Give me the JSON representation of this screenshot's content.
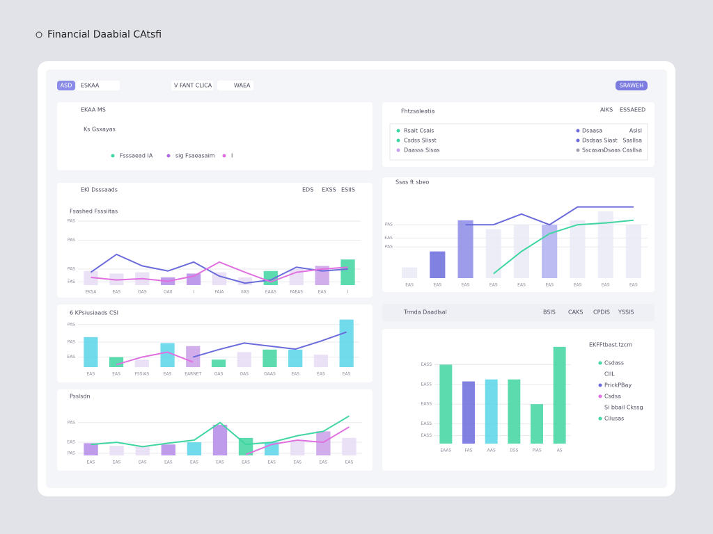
{
  "header": {
    "title": "Financial Daabial CAtsfi"
  },
  "toolbar": {
    "badge": "ASD",
    "filter": "ESKAA",
    "select": "V FANT CLICA",
    "view": "WAEA",
    "button": "SRAWEH"
  },
  "summary": {
    "title": "EKAA MS",
    "row": "Ks Gsxayas",
    "legend": [
      {
        "name": "Fsssaead IA",
        "color": "#3fd6a0"
      },
      {
        "name": "sig Fsaeasaim",
        "color": "#b06be0"
      },
      {
        "name": "I",
        "color": "#e070e0"
      }
    ]
  },
  "table": {
    "title": "Fhtzsaleatia",
    "actions": [
      "AIKS",
      "ESSAEED"
    ],
    "rows": [
      [
        {
          "name": "Rsait Csais",
          "color": "#3fd6a0"
        },
        {
          "name": "Dsaasa",
          "color": "#6b6bdc"
        },
        "Aslsl"
      ],
      [
        {
          "name": "Csdss Slisst",
          "color": "#3fd6a0"
        },
        {
          "name": "Dsdsas Siast",
          "color": "#6b6bdc"
        },
        "Sasllsa"
      ],
      [
        {
          "name": "Daasss Sisas",
          "color": "#c9a0e8"
        },
        {
          "name": "Sscasas",
          "color": "#9fa0b0"
        },
        "Dsaas Casllsa"
      ]
    ]
  },
  "trends": {
    "title": "Trmda Daadlsal",
    "actions": [
      "BSIS",
      "CAKS",
      "CPDIS",
      "YSSIS"
    ]
  },
  "charts": [
    {
      "type": "combo",
      "title": "Fsashed Fsssiitas",
      "panel": "EKI Dsssaads",
      "actions": [
        "EDS",
        "EXSS",
        "ESIIS"
      ],
      "ylim": [
        0,
        100
      ],
      "yticks": [
        {
          "value": 100,
          "label": "PAS"
        },
        {
          "value": 70,
          "label": "PAS"
        },
        {
          "value": 25,
          "label": "PAS"
        },
        {
          "value": 5,
          "label": "FAS"
        }
      ],
      "labels": [
        "EKSA",
        "EAS",
        "OAS",
        "OAII",
        "I",
        "FAIA",
        "IIAS",
        "EAAS",
        "FAEAS",
        "EAS",
        "I"
      ],
      "lines": [
        {
          "color": "#6b6bdc",
          "values": [
            20,
            48,
            30,
            22,
            36,
            14,
            3,
            8,
            28,
            22,
            25
          ]
        },
        {
          "color": "#e070e0",
          "values": [
            12,
            8,
            10,
            6,
            14,
            36,
            20,
            5,
            20,
            25,
            28
          ]
        }
      ],
      "bars": [
        {
          "colors": [
            "#e6dcf5",
            "#e6dcf5",
            "#e6dcf5",
            "#b48be8",
            "#b48be8",
            "#e6dcf5",
            "#e6dcf5",
            "#3fd6a0",
            "#e6dcf5",
            "#c9a0e8",
            "#3fd6a0"
          ],
          "values": [
            22,
            18,
            20,
            12,
            18,
            20,
            12,
            22,
            25,
            30,
            40
          ]
        }
      ]
    },
    {
      "type": "combo",
      "title": "6 KPsiusiaads CSI",
      "ylim": [
        0,
        100
      ],
      "yticks": [
        {
          "value": 85,
          "label": "PAS"
        },
        {
          "value": 50,
          "label": "PAS"
        },
        {
          "value": 20,
          "label": "EAS"
        }
      ],
      "labels": [
        "EAS",
        "EAS",
        "FSSIAS",
        "EAS",
        "EARNET",
        "OAS",
        "OAS",
        "OAAS",
        "EAS",
        "EAS",
        "EAS"
      ],
      "lines": [
        {
          "color": "#e070e0",
          "values": [
            null,
            5,
            20,
            30,
            10,
            null,
            null,
            null,
            null,
            null,
            null
          ]
        },
        {
          "color": "#6b6bdc",
          "values": [
            null,
            null,
            null,
            null,
            20,
            35,
            48,
            42,
            36,
            52,
            70
          ]
        }
      ],
      "bars": [
        {
          "colors": [
            "#58d3e8",
            "#3fd6a0",
            "#e6dcf5",
            "#58d3e8",
            "#c9a0e8",
            "#3fd6a0",
            "#e6dcf5",
            "#3fd6a0",
            "#58d3e8",
            "#e6dcf5",
            "#58d3e8"
          ],
          "values": [
            60,
            20,
            15,
            48,
            42,
            15,
            30,
            35,
            35,
            25,
            95
          ]
        }
      ]
    },
    {
      "type": "combo",
      "title": "Psslsdn",
      "ylim": [
        0,
        100
      ],
      "yticks": [
        {
          "value": 75,
          "label": "PAS"
        },
        {
          "value": 30,
          "label": "EAS"
        },
        {
          "value": 5,
          "label": "PAS"
        }
      ],
      "labels": [
        "EAS",
        "EAS",
        "EAS",
        "EAS",
        "EAS",
        "EAS",
        "EAS",
        "EAS",
        "EAS",
        "EAS",
        "EAS"
      ],
      "lines": [
        {
          "color": "#3fd6a0",
          "values": [
            25,
            30,
            20,
            28,
            35,
            75,
            25,
            30,
            45,
            55,
            90
          ]
        },
        {
          "color": "#e070e0",
          "values": [
            null,
            null,
            null,
            null,
            null,
            null,
            2,
            25,
            35,
            30,
            65
          ]
        }
      ],
      "bars": [
        {
          "colors": [
            "#b48be8",
            "#e6dcf5",
            "#e6dcf5",
            "#b48be8",
            "#58d3e8",
            "#b48be8",
            "#3fd6a0",
            "#58d3e8",
            "#e6dcf5",
            "#c9a0e8",
            "#e6dcf5"
          ],
          "values": [
            28,
            22,
            20,
            25,
            30,
            70,
            40,
            30,
            35,
            55,
            40
          ]
        }
      ]
    },
    {
      "type": "combo",
      "title": "Ssas ft sbeo",
      "ylim": [
        0,
        100
      ],
      "yticks": [
        {
          "value": 60,
          "label": "PAS"
        },
        {
          "value": 45,
          "label": "EAS"
        },
        {
          "value": 35,
          "label": "PAS"
        }
      ],
      "labels": [
        "EAS",
        "EAS",
        "EAS",
        "EAS",
        "EAS",
        "EAS",
        "EAS",
        "EAS",
        "EAS"
      ],
      "lines": [
        {
          "color": "#6b6bdc",
          "values": [
            null,
            null,
            60,
            60,
            72,
            60,
            80,
            80,
            80
          ]
        },
        {
          "color": "#3fd6a0",
          "values": [
            null,
            null,
            null,
            5,
            30,
            50,
            60,
            62,
            65
          ]
        }
      ],
      "bars": [
        {
          "colors": [
            "#e9eaf5",
            "#6b6bdc",
            "#8b8be8",
            "#e9eaf5",
            "#e9eaf5",
            "#b0b0f0",
            "#e9eaf5",
            "#e9eaf5",
            "#e9eaf5"
          ],
          "values": [
            12,
            30,
            65,
            55,
            60,
            60,
            65,
            75,
            60
          ]
        }
      ]
    },
    {
      "type": "combo",
      "title": "EKFFtbast.tzcm",
      "ylim": [
        0,
        100
      ],
      "yticks": [
        {
          "value": 80,
          "label": "EASS"
        },
        {
          "value": 60,
          "label": "EASS"
        },
        {
          "value": 40,
          "label": "EASS"
        },
        {
          "value": 20,
          "label": "EASS"
        },
        {
          "value": 8,
          "label": "EASS"
        }
      ],
      "labels": [
        "EAAS",
        "FAS",
        "AAS",
        "DSS",
        "PIAS",
        "AS"
      ],
      "lines": [],
      "bars": [
        {
          "colors": [
            "#3fd6a0",
            "#6b6bdc",
            "#58d3e8",
            "#3fd6a0",
            "#3fd6a0",
            "#3fd6a0"
          ],
          "values": [
            80,
            63,
            65,
            65,
            40,
            98
          ]
        }
      ],
      "legend": [
        {
          "name": "Csdass",
          "color": "#3fd6a0"
        },
        {
          "name": "CIIL",
          "color": null
        },
        {
          "name": "PrickPBay",
          "color": "#6b6bdc"
        },
        {
          "name": "Csdsa",
          "color": "#e070e0"
        },
        {
          "name": "Si bbail Ckssg",
          "color": null
        },
        {
          "name": "Cilusas",
          "color": "#3fd6a0"
        }
      ]
    }
  ]
}
